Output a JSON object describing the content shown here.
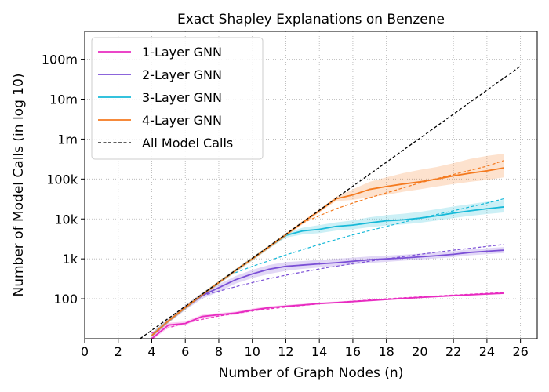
{
  "chart_data": {
    "type": "line",
    "title": "Exact Shapley Explanations on Benzene",
    "xlabel": "Number of Graph Nodes (n)",
    "ylabel": "Number of Model Calls (in log 10)",
    "xlim": [
      0,
      27
    ],
    "ylim": [
      10,
      500000000
    ],
    "yscale": "log",
    "grid": true,
    "legend_position": "top-left",
    "x_ticks": [
      0,
      2,
      4,
      6,
      8,
      10,
      12,
      14,
      16,
      18,
      20,
      22,
      24,
      26
    ],
    "y_ticks": [
      {
        "value": 100,
        "label": "100"
      },
      {
        "value": 1000,
        "label": "1k"
      },
      {
        "value": 10000,
        "label": "10k"
      },
      {
        "value": 100000,
        "label": "100k"
      },
      {
        "value": 1000000,
        "label": "1m"
      },
      {
        "value": 10000000,
        "label": "10m"
      },
      {
        "value": 100000000,
        "label": "100m"
      }
    ],
    "x": [
      4,
      5,
      6,
      7,
      8,
      9,
      10,
      11,
      12,
      13,
      14,
      15,
      16,
      17,
      18,
      19,
      20,
      21,
      22,
      23,
      24,
      25
    ],
    "series": [
      {
        "name": "1-Layer GNN",
        "color": "#e82bc1",
        "values": [
          10,
          22,
          24,
          36,
          40,
          44,
          52,
          60,
          65,
          70,
          76,
          80,
          85,
          90,
          96,
          102,
          108,
          114,
          120,
          126,
          132,
          138
        ],
        "lower": [
          9,
          19,
          22,
          32,
          36,
          40,
          48,
          56,
          61,
          66,
          72,
          76,
          81,
          86,
          92,
          97,
          103,
          109,
          114,
          120,
          126,
          131
        ],
        "upper": [
          12,
          25,
          27,
          40,
          44,
          48,
          57,
          65,
          70,
          75,
          81,
          85,
          90,
          95,
          101,
          107,
          114,
          120,
          126,
          132,
          138,
          145
        ],
        "fit": [
          {
            "x": 4,
            "y": 14
          },
          {
            "x": 6,
            "y": 25
          },
          {
            "x": 8,
            "y": 37
          },
          {
            "x": 10,
            "y": 50
          },
          {
            "x": 12,
            "y": 62
          },
          {
            "x": 14,
            "y": 75
          },
          {
            "x": 16,
            "y": 87
          },
          {
            "x": 18,
            "y": 100
          },
          {
            "x": 20,
            "y": 112
          },
          {
            "x": 22,
            "y": 124
          },
          {
            "x": 24,
            "y": 137
          },
          {
            "x": 25,
            "y": 143
          }
        ]
      },
      {
        "name": "2-Layer GNN",
        "color": "#7b4fd6",
        "values": [
          12,
          28,
          60,
          120,
          190,
          300,
          420,
          550,
          650,
          700,
          750,
          800,
          870,
          950,
          1000,
          1050,
          1120,
          1200,
          1300,
          1450,
          1550,
          1650
        ],
        "lower": [
          11,
          25,
          52,
          100,
          150,
          240,
          330,
          420,
          500,
          560,
          610,
          660,
          720,
          790,
          840,
          900,
          960,
          1030,
          1110,
          1230,
          1310,
          1400
        ],
        "upper": [
          14,
          32,
          70,
          140,
          230,
          370,
          530,
          700,
          830,
          880,
          940,
          1000,
          1070,
          1150,
          1210,
          1270,
          1350,
          1450,
          1570,
          1730,
          1850,
          1980
        ],
        "fit": [
          {
            "x": 7,
            "y": 120
          },
          {
            "x": 8,
            "y": 155
          },
          {
            "x": 9,
            "y": 200
          },
          {
            "x": 10,
            "y": 255
          },
          {
            "x": 11,
            "y": 320
          },
          {
            "x": 12,
            "y": 390
          },
          {
            "x": 14,
            "y": 560
          },
          {
            "x": 16,
            "y": 760
          },
          {
            "x": 18,
            "y": 1000
          },
          {
            "x": 20,
            "y": 1300
          },
          {
            "x": 22,
            "y": 1650
          },
          {
            "x": 24,
            "y": 2050
          },
          {
            "x": 25,
            "y": 2300
          }
        ]
      },
      {
        "name": "3-Layer GNN",
        "color": "#17b9d8",
        "values": [
          12,
          28,
          60,
          125,
          255,
          510,
          1000,
          2000,
          3900,
          5000,
          5500,
          6500,
          7000,
          8000,
          9000,
          9500,
          10500,
          12000,
          14000,
          16000,
          18000,
          20000
        ],
        "lower": [
          11,
          25,
          54,
          112,
          230,
          460,
          900,
          1800,
          3400,
          4100,
          4400,
          5100,
          5500,
          6200,
          6900,
          7300,
          8000,
          9100,
          10500,
          12000,
          13300,
          14500
        ],
        "upper": [
          14,
          31,
          67,
          140,
          280,
          560,
          1100,
          2200,
          4400,
          6000,
          7000,
          8200,
          9200,
          11000,
          12500,
          13500,
          15000,
          17500,
          20500,
          23500,
          27000,
          30000
        ],
        "fit": [
          {
            "x": 9,
            "y": 450
          },
          {
            "x": 10,
            "y": 650
          },
          {
            "x": 11,
            "y": 900
          },
          {
            "x": 12,
            "y": 1250
          },
          {
            "x": 13,
            "y": 1700
          },
          {
            "x": 14,
            "y": 2300
          },
          {
            "x": 16,
            "y": 4000
          },
          {
            "x": 18,
            "y": 6500
          },
          {
            "x": 20,
            "y": 10500
          },
          {
            "x": 22,
            "y": 16000
          },
          {
            "x": 24,
            "y": 25000
          },
          {
            "x": 25,
            "y": 32000
          }
        ]
      },
      {
        "name": "4-Layer GNN",
        "color": "#f47a1f",
        "values": [
          12,
          28,
          60,
          125,
          255,
          510,
          1000,
          2000,
          4000,
          8100,
          16000,
          32000,
          40000,
          55000,
          65000,
          75000,
          85000,
          100000,
          120000,
          140000,
          160000,
          190000
        ],
        "lower": [
          11,
          25,
          54,
          112,
          230,
          460,
          900,
          1800,
          3600,
          7300,
          14500,
          28000,
          30000,
          35000,
          40000,
          48000,
          55000,
          65000,
          75000,
          85000,
          95000,
          110000
        ],
        "upper": [
          14,
          31,
          67,
          140,
          280,
          560,
          1100,
          2200,
          4400,
          9000,
          17500,
          36000,
          55000,
          85000,
          110000,
          140000,
          170000,
          200000,
          250000,
          320000,
          380000,
          430000
        ],
        "fit": [
          {
            "x": 13,
            "y": 8000
          },
          {
            "x": 14,
            "y": 12000
          },
          {
            "x": 15,
            "y": 18000
          },
          {
            "x": 16,
            "y": 25000
          },
          {
            "x": 17,
            "y": 34000
          },
          {
            "x": 18,
            "y": 45000
          },
          {
            "x": 20,
            "y": 80000
          },
          {
            "x": 22,
            "y": 130000
          },
          {
            "x": 24,
            "y": 210000
          },
          {
            "x": 25,
            "y": 290000
          }
        ]
      },
      {
        "name": "All Model Calls",
        "color": "#000000",
        "dashed": true,
        "line": [
          {
            "x": 3.3,
            "y": 10
          },
          {
            "x": 26,
            "y": 67108864
          }
        ]
      }
    ]
  }
}
